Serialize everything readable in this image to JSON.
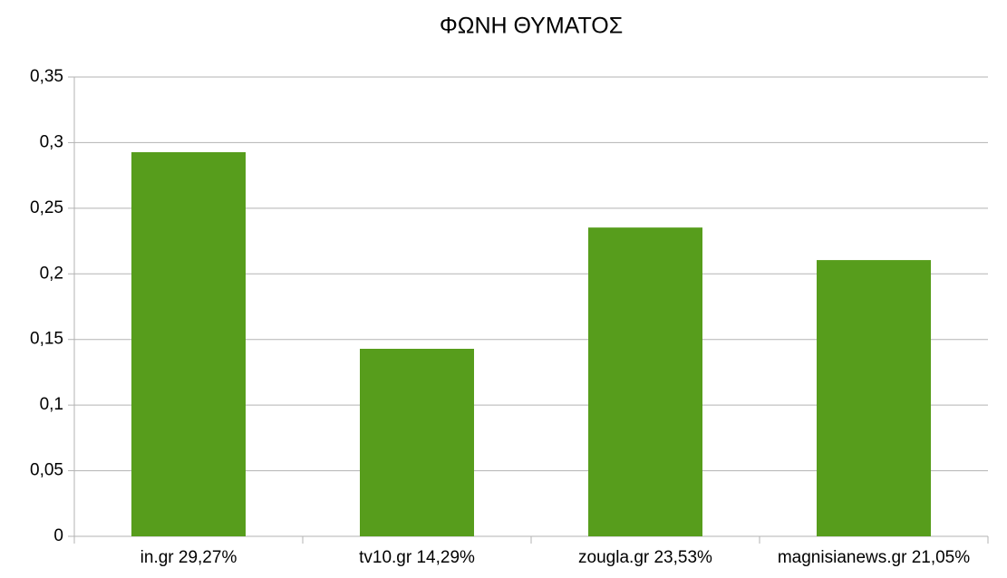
{
  "chart_data": {
    "type": "bar",
    "title": "ΦΩΝΗ ΘΥΜΑΤΟΣ",
    "categories": [
      "in.gr 29,27%",
      "tv10.gr 14,29%",
      "zougla.gr 23,53%",
      "magnisianews.gr 21,05%"
    ],
    "values": [
      0.2927,
      0.1429,
      0.2353,
      0.2105
    ],
    "color": "#579d1c",
    "ylim": [
      0,
      0.35
    ],
    "yticks": [
      0,
      {
        "value": 0.05,
        "label": "0,05"
      },
      {
        "value": 0.1,
        "label": "0,1"
      },
      {
        "value": 0.15,
        "label": "0,15"
      },
      {
        "value": 0.2,
        "label": "0,2"
      },
      {
        "value": 0.25,
        "label": "0,25"
      },
      {
        "value": 0.3,
        "label": "0,3"
      },
      {
        "value": 0.35,
        "label": "0,35"
      }
    ],
    "grid": true
  }
}
